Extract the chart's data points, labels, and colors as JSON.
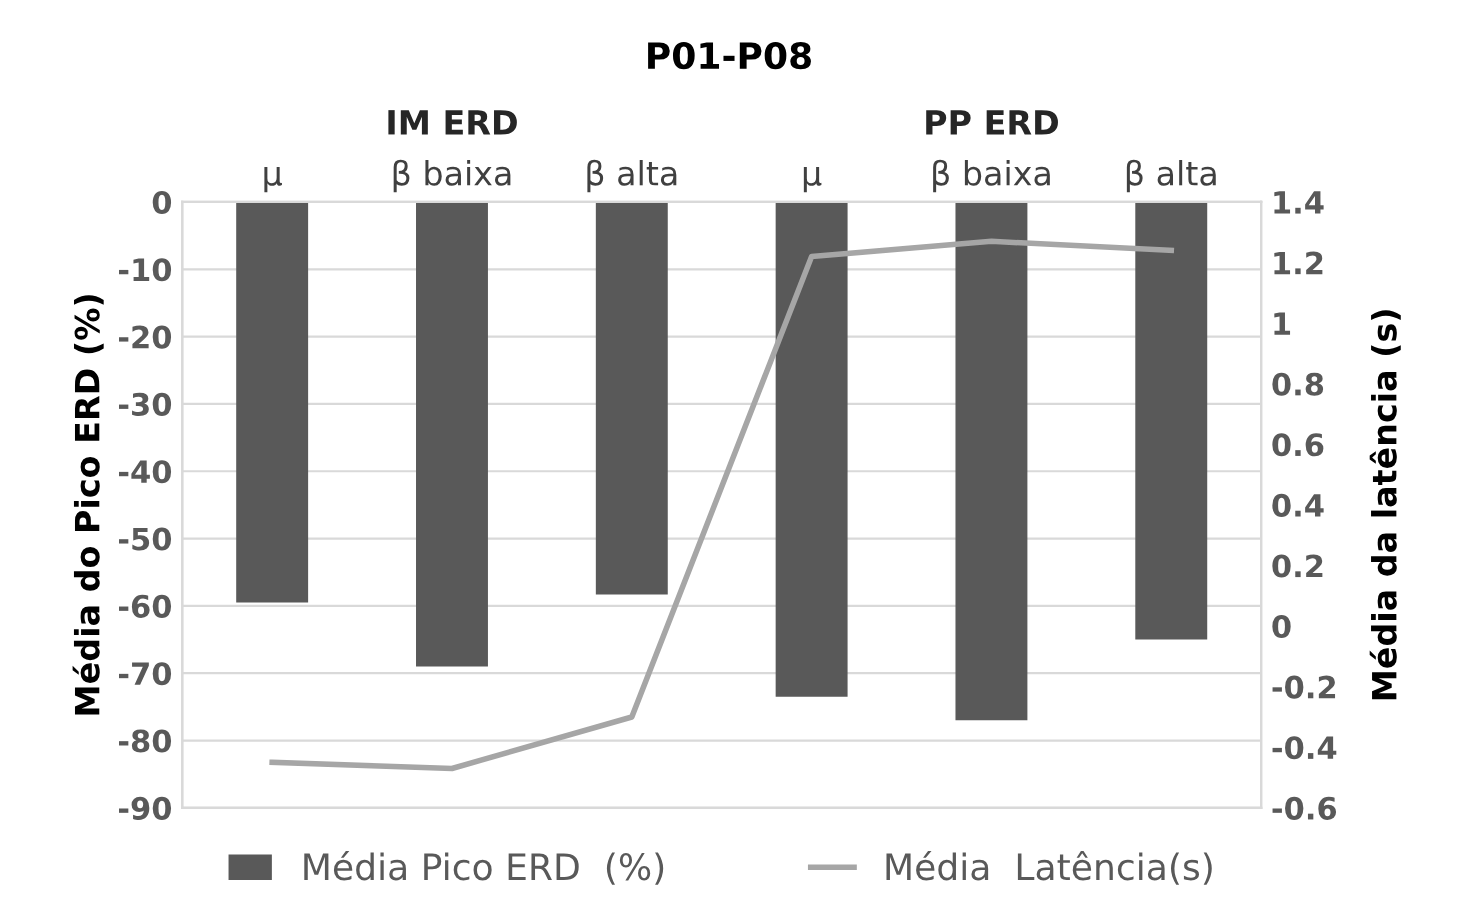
{
  "chart_data": {
    "type": "bar",
    "title": "P01-P08",
    "categories": [
      "μ",
      "β baixa",
      "β alta",
      "μ",
      "β baixa",
      "β alta"
    ],
    "annotations": [
      "IM ERD",
      "PP ERD"
    ],
    "series": [
      {
        "name": "Média Pico ERD  (%)",
        "color": "#595959",
        "values": [
          -59.5,
          -69,
          -58.3,
          -73.5,
          -77,
          -65
        ]
      },
      {
        "name": "Média  Latência(s)",
        "type": "line",
        "axis": "y2",
        "color": "#a6a6a6",
        "values": [
          -0.45,
          -0.47,
          -0.3,
          1.22,
          1.27,
          1.24
        ]
      }
    ],
    "ylabel": "Média do Pico ERD (%)",
    "y2label": "Média da latência (s)",
    "ylim": [
      -90,
      0
    ],
    "yticks": [
      0,
      -10,
      -20,
      -30,
      -40,
      -50,
      -60,
      -70,
      -80,
      -90
    ],
    "y2lim": [
      -0.6,
      1.4
    ],
    "y2ticks": [
      1.4,
      1.2,
      {
        "value": 1,
        "label": "1"
      },
      0.8,
      0.6,
      0.4,
      0.2,
      {
        "value": 0,
        "label": "0"
      },
      -0.2,
      -0.4,
      -0.6
    ],
    "grid": "y",
    "legend": "bottom"
  }
}
